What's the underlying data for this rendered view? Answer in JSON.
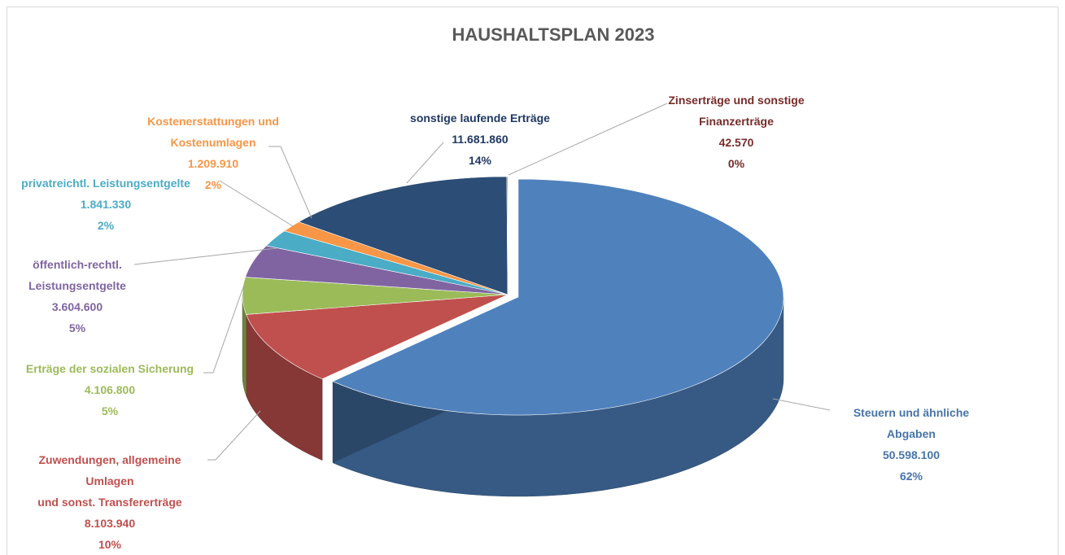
{
  "chart_data": {
    "type": "pie3d",
    "title": "HAUSHALTSPLAN 2023",
    "categories": [
      "Steuern und ähnliche Abgaben",
      "Zuwendungen, allgemeine\nUmlagen\nund sonst. Transfererträge",
      "Erträge der sozialen Sicherung",
      "öffentlich-rechtl.\nLeistungsentgelte",
      "privatreichtl. Leistungsentgelte",
      "Kostenerstattungen und\nKostenumlagen",
      "sonstige laufende Erträge",
      "Zinserträge und sonstige\nFinanzerträge"
    ],
    "values": [
      50598100,
      8103940,
      4106800,
      3604600,
      1841330,
      1209910,
      11681860,
      42570
    ],
    "value_labels": [
      "50.598.100",
      "8.103.940",
      "4.106.800",
      "3.604.600",
      "1.841.330",
      "1.209.910",
      "11.681.860",
      "42.570"
    ],
    "percent_labels": [
      "62%",
      "10%",
      "5%",
      "5%",
      "2%",
      "2%",
      "14%",
      "0%"
    ],
    "colors": [
      "#4f81bd",
      "#c0504d",
      "#9bbb59",
      "#8064a2",
      "#4bacc6",
      "#f79646",
      "#2c4d75",
      "#772c2a"
    ]
  }
}
